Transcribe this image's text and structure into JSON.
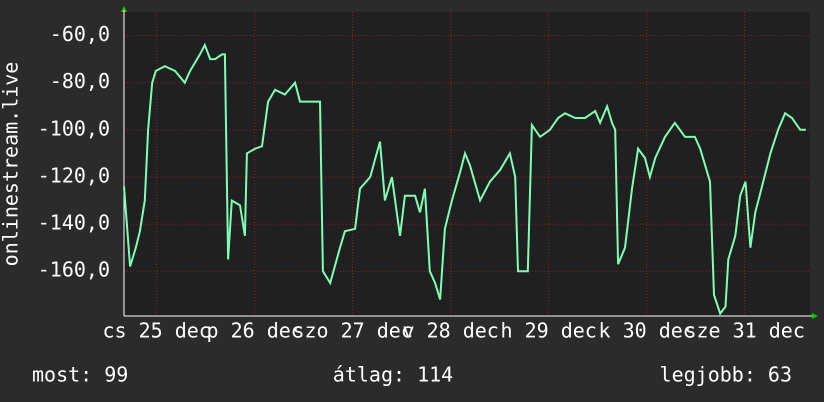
{
  "chart_data": {
    "type": "line",
    "y_label": "onlinestream.live",
    "xlim": [
      0,
      168
    ],
    "ylim": [
      -179,
      -50
    ],
    "xticks": [
      {
        "value": 8,
        "label": "cs 25 dec"
      },
      {
        "value": 32,
        "label": "p 26 dec"
      },
      {
        "value": 56,
        "label": "szo 27 dec"
      },
      {
        "value": 80,
        "label": "v 28 dec"
      },
      {
        "value": 104,
        "label": "h 29 dec"
      },
      {
        "value": 128,
        "label": "k 30 dec"
      },
      {
        "value": 152,
        "label": "sze 31 dec"
      }
    ],
    "yticks": [
      {
        "value": -60,
        "label": "-60,0"
      },
      {
        "value": -80,
        "label": "-80,0"
      },
      {
        "value": -100,
        "label": "-100,0"
      },
      {
        "value": -120,
        "label": "-120,0"
      },
      {
        "value": -140,
        "label": "-140,0"
      },
      {
        "value": -160,
        "label": "-160,0"
      }
    ],
    "grid": true,
    "series": [
      {
        "color": "#80ffb4",
        "x": [
          0,
          1.5,
          2.9,
          3.9,
          5.1,
          5.9,
          6.9,
          7.8,
          10.0,
          12.5,
          14.9,
          16.2,
          18.6,
          19.8,
          21.1,
          22.3,
          24.0,
          24.7,
          25.5,
          26.4,
          28.4,
          29.6,
          30.1,
          32.1,
          33.8,
          35.3,
          37.0,
          39.4,
          41.9,
          43.1,
          45.5,
          47.5,
          48.0,
          48.7,
          50.5,
          52.9,
          54.1,
          56.6,
          57.8,
          60.3,
          62.7,
          63.9,
          65.6,
          67.6,
          68.8,
          71.3,
          72.5,
          73.7,
          74.9,
          76.2,
          77.4,
          78.6,
          80.3,
          82.3,
          83.5,
          84.7,
          87.2,
          89.6,
          92.1,
          94.5,
          95.8,
          96.5,
          98.2,
          98.9,
          99.9,
          101.9,
          104.3,
          106.3,
          108.0,
          110.5,
          112.9,
          115.4,
          116.6,
          118.3,
          119.5,
          120.3,
          121.0,
          122.7,
          124.4,
          125.9,
          127.6,
          128.8,
          130.1,
          132.5,
          134.9,
          137.4,
          139.8,
          141.1,
          142.3,
          143.5,
          144.5,
          146.0,
          147.3,
          148.0,
          149.7,
          150.9,
          152.2,
          153.4,
          154.6,
          155.8,
          158.3,
          160.2,
          161.9,
          163.6,
          165.6,
          167.0
        ],
        "values": [
          -124,
          -158,
          -150,
          -143,
          -130,
          -100,
          -80,
          -75,
          -73,
          -75,
          -80,
          -75,
          -68,
          -64,
          -70,
          -70,
          -68,
          -68,
          -155,
          -130,
          -132,
          -145,
          -110,
          -108,
          -107,
          -88,
          -83,
          -85,
          -80,
          -88,
          -88,
          -88,
          -88,
          -160,
          -165,
          -150,
          -143,
          -142,
          -125,
          -120,
          -105,
          -130,
          -120,
          -145,
          -128,
          -128,
          -135,
          -125,
          -160,
          -165,
          -172,
          -142,
          -130,
          -118,
          -110,
          -115,
          -130,
          -122,
          -117,
          -110,
          -120,
          -160,
          -160,
          -160,
          -98,
          -103,
          -100,
          -95,
          -93,
          -95,
          -95,
          -92,
          -97,
          -90,
          -97,
          -100,
          -157,
          -150,
          -125,
          -108,
          -112,
          -120,
          -112,
          -103,
          -97,
          -103,
          -103,
          -108,
          -115,
          -122,
          -170,
          -178,
          -175,
          -155,
          -145,
          -128,
          -122,
          -150,
          -135,
          -127,
          -110,
          -100,
          -93,
          -95,
          -100,
          -100
        ]
      }
    ],
    "footer": [
      "most: 99",
      "átlag: 114",
      "legjobb: 63"
    ]
  }
}
